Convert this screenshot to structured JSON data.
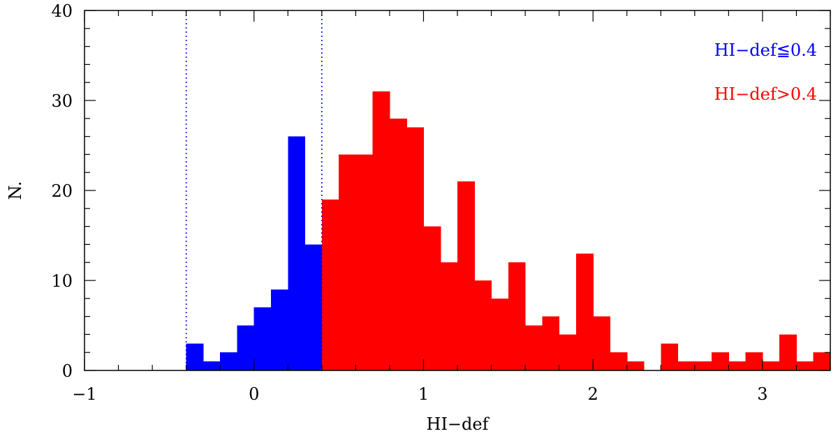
{
  "chart_data": {
    "type": "bar",
    "xlabel": "HI−def",
    "ylabel": "N.",
    "xlim": [
      -1,
      3.4
    ],
    "ylim": [
      0,
      40
    ],
    "bin_width": 0.1,
    "x_ticks": [
      -1,
      0,
      1,
      2,
      3
    ],
    "x_tick_labels": [
      "−1",
      "0",
      "1",
      "2",
      "3"
    ],
    "y_ticks": [
      0,
      10,
      20,
      30,
      40
    ],
    "y_tick_labels": [
      "0",
      "10",
      "20",
      "30",
      "40"
    ],
    "threshold_lines": [
      -0.4,
      0.4
    ],
    "series": [
      {
        "name": "HI−def≦0.4",
        "color": "#0000ff",
        "bin_starts": [
          -0.4,
          -0.3,
          -0.2,
          -0.1,
          0.0,
          0.1,
          0.2,
          0.3
        ],
        "values": [
          3,
          1,
          2,
          5,
          7,
          9,
          26,
          14
        ]
      },
      {
        "name": "HI−def>0.4",
        "color": "#ff0000",
        "bin_starts": [
          0.4,
          0.5,
          0.6,
          0.7,
          0.8,
          0.9,
          1.0,
          1.1,
          1.2,
          1.3,
          1.4,
          1.5,
          1.6,
          1.7,
          1.8,
          1.9,
          2.0,
          2.1,
          2.2,
          2.3,
          2.4,
          2.5,
          2.6,
          2.7,
          2.8,
          2.9,
          3.0,
          3.1,
          3.2,
          3.3
        ],
        "values": [
          19,
          24,
          24,
          31,
          28,
          27,
          16,
          12,
          21,
          10,
          8,
          12,
          5,
          6,
          4,
          13,
          6,
          2,
          1,
          0,
          3,
          1,
          1,
          2,
          1,
          2,
          1,
          4,
          1,
          2
        ]
      }
    ],
    "legend": [
      {
        "label": "HI−def≦0.4",
        "color": "#0000ff"
      },
      {
        "label": "HI−def>0.4",
        "color": "#ff0000"
      }
    ],
    "legend_position": "top-right"
  }
}
